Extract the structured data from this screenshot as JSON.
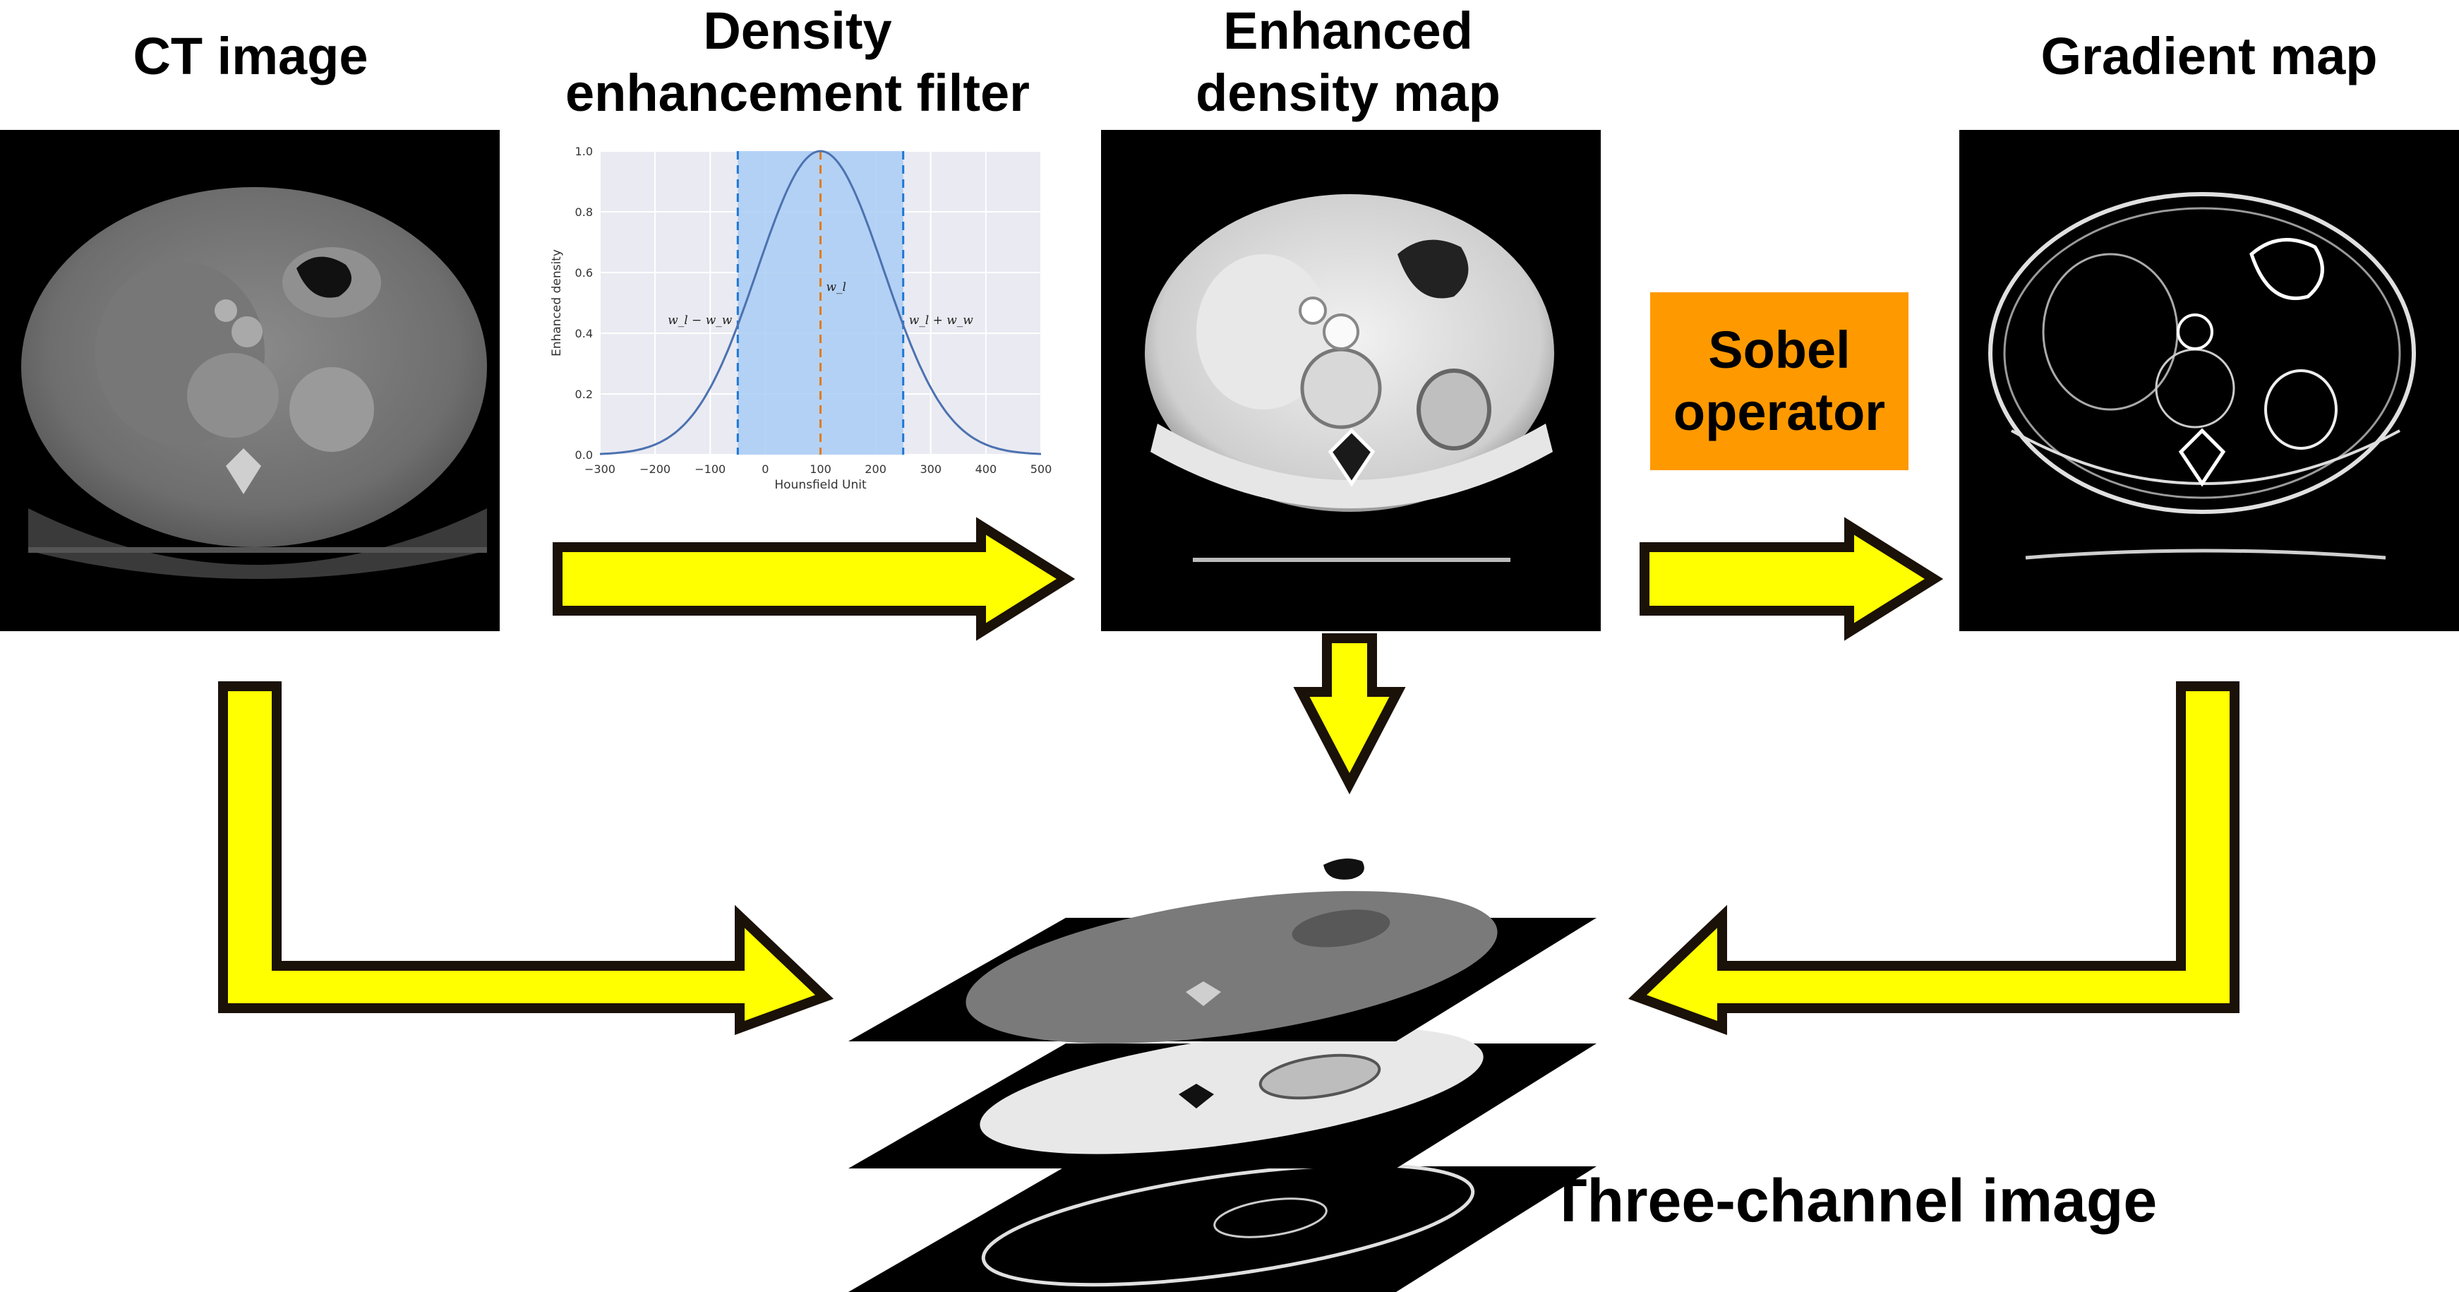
{
  "titles": {
    "ct_image": "CT image",
    "filter_line1": "Density",
    "filter_line2": "enhancement filter",
    "enhanced_line1": "Enhanced",
    "enhanced_line2": "density map",
    "gradient_map": "Gradient map",
    "three_channel": "Three-channel image"
  },
  "sobel": {
    "line1": "Sobel",
    "line2": "operator",
    "color": "#FF9900"
  },
  "colors": {
    "arrow_fill": "#FFFF00",
    "arrow_stroke": "#1a1109",
    "panel_bg": "#000000"
  },
  "chart_data": {
    "type": "line",
    "title": "",
    "xlabel": "Hounsfield Unit",
    "ylabel": "Enhanced density",
    "xlim": [
      -300,
      500
    ],
    "ylim": [
      0,
      1.0
    ],
    "xticks": [
      -300,
      -200,
      -100,
      0,
      100,
      200,
      300,
      400,
      500
    ],
    "yticks": [
      0.0,
      0.2,
      0.4,
      0.6,
      0.8,
      1.0
    ],
    "ytick_labels": [
      "0.0",
      "0.2",
      "0.4",
      "0.6",
      "0.8",
      "1.0"
    ],
    "grid": true,
    "curve": {
      "type": "gaussian",
      "center": 100,
      "sigma": 115,
      "color": "#4c72b0"
    },
    "window": {
      "level": 100,
      "width": 150,
      "fill": "#a9cdf4"
    },
    "annotations": {
      "center": "w_l",
      "left": "w_l − w_w",
      "right": "w_l + w_w"
    },
    "line_colors": {
      "bounds": "#1f77d4",
      "center": "#e07b1a"
    },
    "series": [
      {
        "x": [
          -300,
          -250,
          -200,
          -150,
          -100,
          -50,
          0,
          50,
          100,
          150,
          200,
          250,
          300,
          350,
          400,
          450,
          500
        ],
        "values": [
          0.002,
          0.008,
          0.033,
          0.094,
          0.22,
          0.427,
          0.685,
          0.91,
          1.0,
          0.91,
          0.685,
          0.427,
          0.22,
          0.094,
          0.033,
          0.008,
          0.002
        ]
      }
    ]
  }
}
